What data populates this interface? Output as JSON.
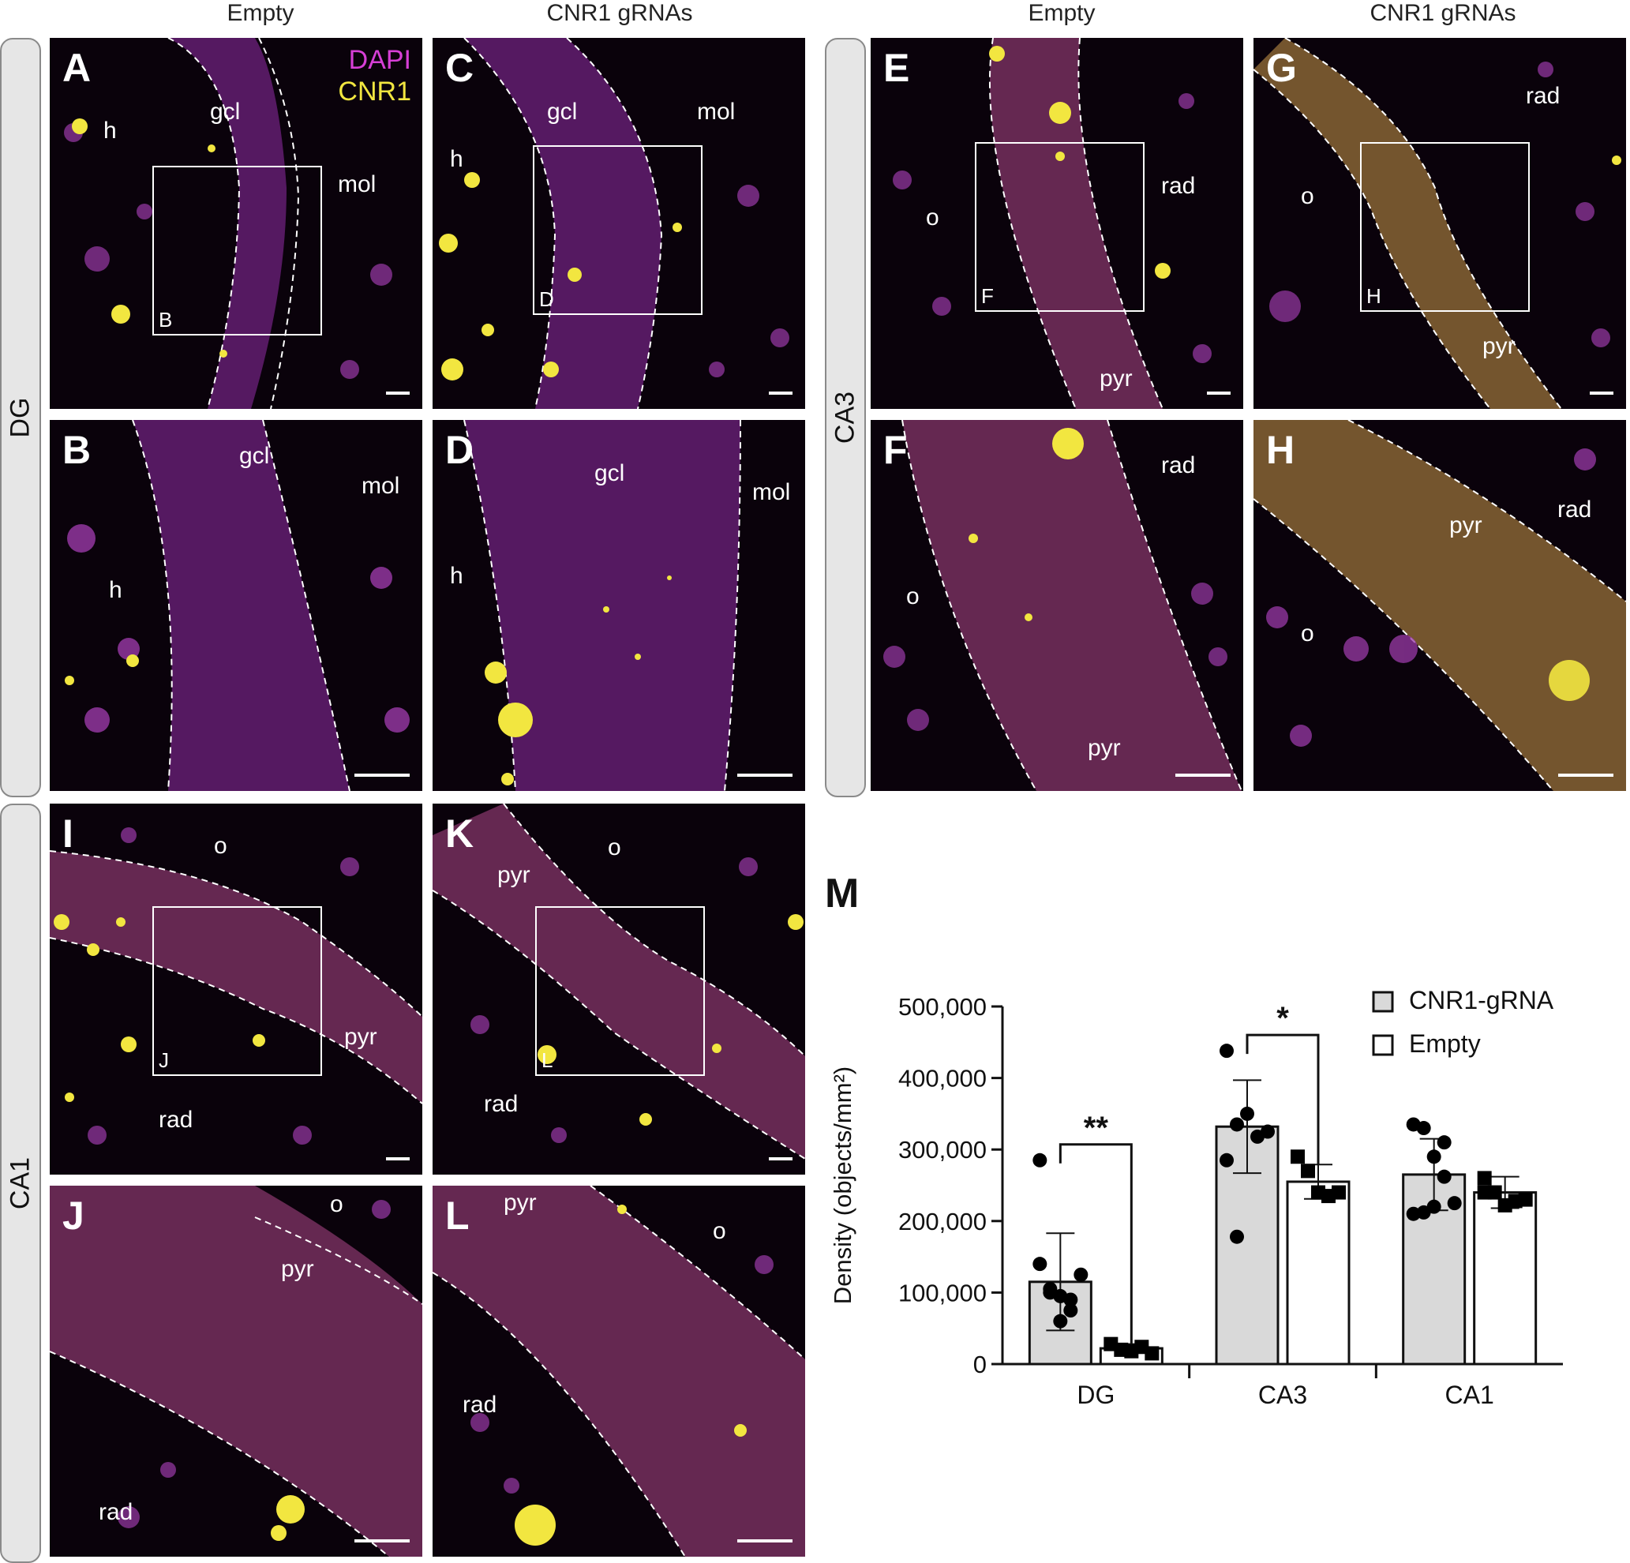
{
  "columns": [
    "Empty",
    "CNR1 gRNAs",
    "Empty",
    "CNR1 gRNAs"
  ],
  "side_labels": {
    "dg": "DG",
    "ca3": "CA3",
    "ca1": "CA1"
  },
  "stain_legend": {
    "dapi": "DAPI",
    "cnr1": "CNR1",
    "dapi_color": "#d63fd6",
    "cnr1_color": "#f2e640"
  },
  "panels": {
    "A": {
      "letter": "A",
      "labels": [
        "gcl",
        "mol",
        "h"
      ],
      "inset": "B"
    },
    "B": {
      "letter": "B",
      "labels": [
        "gcl",
        "mol",
        "h"
      ]
    },
    "C": {
      "letter": "C",
      "labels": [
        "gcl",
        "mol",
        "h"
      ],
      "inset": "D"
    },
    "D": {
      "letter": "D",
      "labels": [
        "gcl",
        "mol",
        "h"
      ]
    },
    "E": {
      "letter": "E",
      "labels": [
        "rad",
        "o",
        "pyr"
      ],
      "inset": "F"
    },
    "F": {
      "letter": "F",
      "labels": [
        "rad",
        "o",
        "pyr"
      ]
    },
    "G": {
      "letter": "G",
      "labels": [
        "rad",
        "o",
        "pyr"
      ],
      "inset": "H"
    },
    "H": {
      "letter": "H",
      "labels": [
        "pyr",
        "rad",
        "o"
      ]
    },
    "I": {
      "letter": "I",
      "labels": [
        "o",
        "pyr",
        "rad"
      ],
      "inset": "J"
    },
    "J": {
      "letter": "J",
      "labels": [
        "o",
        "pyr",
        "rad"
      ]
    },
    "K": {
      "letter": "K",
      "labels": [
        "pyr",
        "o",
        "rad"
      ],
      "inset": "L"
    },
    "L": {
      "letter": "L",
      "labels": [
        "pyr",
        "o",
        "rad"
      ]
    }
  },
  "chart_panel_letter": "M",
  "chart_data": {
    "type": "bar",
    "categories": [
      "DG",
      "CA3",
      "CA1"
    ],
    "ylabel": "Density (objects/mm²)",
    "ylim": [
      0,
      500000
    ],
    "yticks": [
      "0",
      "100,000",
      "200,000",
      "300,000",
      "400,000",
      "500,000"
    ],
    "yticks_values": [
      0,
      100000,
      200000,
      300000,
      400000,
      500000
    ],
    "legend": {
      "placement": "top-right"
    },
    "series": [
      {
        "name": "CNR1-gRNA",
        "color": "#d9d9d9",
        "marker": "circle",
        "values": [
          115000,
          332000,
          265000
        ],
        "sd": [
          68000,
          65000,
          50000
        ],
        "points": [
          [
            285000,
            105000,
            95000,
            75000,
            125000,
            140000,
            100000,
            60000,
            90000
          ],
          [
            438000,
            335000,
            350000,
            318000,
            325000,
            285000,
            178000
          ],
          [
            335000,
            330000,
            290000,
            310000,
            225000,
            210000,
            212000,
            220000,
            262000
          ]
        ]
      },
      {
        "name": "Empty",
        "color": "#ffffff",
        "marker": "square",
        "values": [
          22000,
          255000,
          240000
        ],
        "sd": [
          6000,
          24000,
          22000
        ],
        "points": [
          [
            28000,
            20000,
            18000,
            24000,
            15000
          ],
          [
            290000,
            270000,
            240000,
            235000,
            240000
          ],
          [
            260000,
            240000,
            222000,
            228000,
            230000,
            240000
          ]
        ]
      }
    ],
    "significance": [
      {
        "category": "DG",
        "label": "**"
      },
      {
        "category": "CA3",
        "label": "*"
      }
    ]
  }
}
